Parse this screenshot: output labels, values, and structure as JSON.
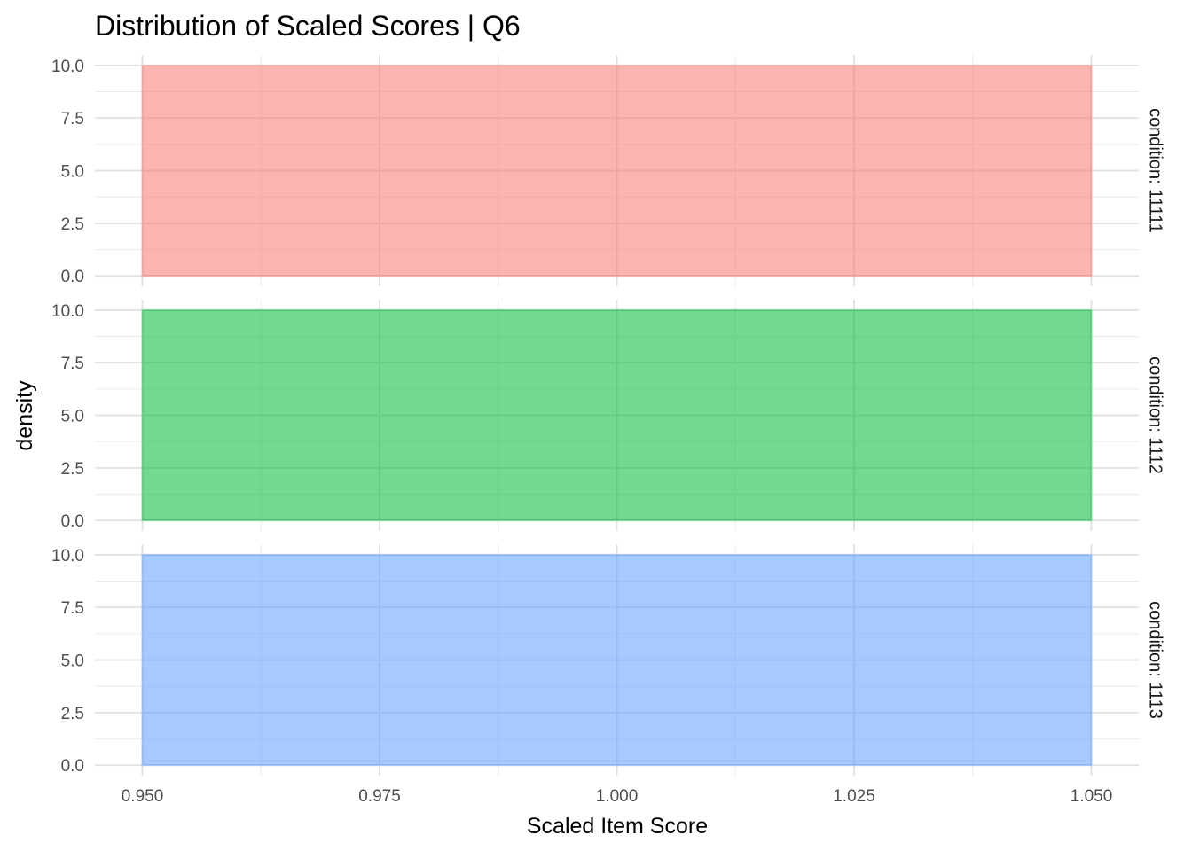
{
  "chart_data": {
    "type": "area",
    "title": "Distribution of Scaled Scores | Q6",
    "xlabel": "Scaled Item Score",
    "ylabel": "density",
    "xlim": [
      0.945,
      1.055
    ],
    "ylim": [
      -0.5,
      10.5
    ],
    "x_ticks": [
      0.95,
      0.975,
      1.0,
      1.025,
      1.05
    ],
    "x_tick_labels": [
      "0.950",
      "0.975",
      "1.000",
      "1.025",
      "1.050"
    ],
    "y_ticks": [
      0,
      2.5,
      5,
      7.5,
      10
    ],
    "y_tick_labels": [
      "0.0",
      "2.5",
      "5.0",
      "7.5",
      "10.0"
    ],
    "grid": true,
    "legend": "none",
    "facets": [
      {
        "strip_label": "condition: 11111",
        "color": "#F8766D",
        "x": [
          0.95,
          1.05
        ],
        "density": [
          10,
          10
        ]
      },
      {
        "strip_label": "condition: 1112",
        "color": "#00BA38",
        "x": [
          0.95,
          1.05
        ],
        "density": [
          10,
          10
        ]
      },
      {
        "strip_label": "condition: 1113",
        "color": "#619CFF",
        "x": [
          0.95,
          1.05
        ],
        "density": [
          10,
          10
        ]
      }
    ]
  }
}
